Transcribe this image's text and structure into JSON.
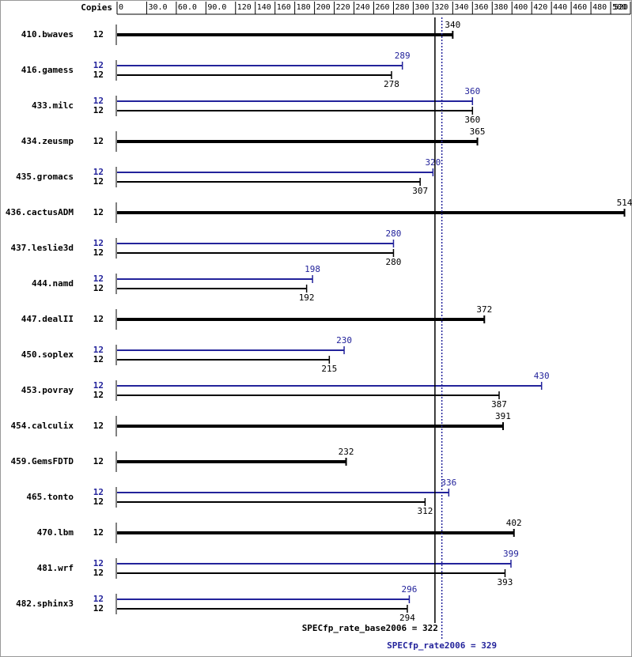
{
  "chart_data": {
    "type": "bar",
    "copies_label": "Copies",
    "categories": [
      "410.bwaves",
      "416.gamess",
      "433.milc",
      "434.zeusmp",
      "435.gromacs",
      "436.cactusADM",
      "437.leslie3d",
      "444.namd",
      "447.dealII",
      "450.soplex",
      "453.povray",
      "454.calculix",
      "459.GemsFDTD",
      "465.tonto",
      "470.lbm",
      "481.wrf",
      "482.sphinx3"
    ],
    "series": [
      {
        "color": "#23239b",
        "copies": [
          null,
          12,
          12,
          null,
          12,
          null,
          12,
          12,
          null,
          12,
          12,
          null,
          null,
          12,
          null,
          12,
          12
        ],
        "values": [
          null,
          289,
          360,
          null,
          320,
          null,
          280,
          198,
          null,
          230,
          430,
          null,
          null,
          336,
          null,
          399,
          296
        ]
      },
      {
        "color": "#000000",
        "copies": [
          12,
          12,
          12,
          12,
          12,
          12,
          12,
          12,
          12,
          12,
          12,
          12,
          12,
          12,
          12,
          12,
          12
        ],
        "values": [
          340,
          278,
          360,
          365,
          307,
          514,
          280,
          192,
          372,
          215,
          387,
          391,
          232,
          312,
          402,
          393,
          294
        ]
      }
    ],
    "xlim": [
      0,
      520
    ],
    "xticks": [
      0,
      {
        "value": 30,
        "label": "30.0"
      },
      {
        "value": 60,
        "label": "60.0"
      },
      {
        "value": 90,
        "label": "90.0"
      },
      120,
      140,
      160,
      180,
      200,
      220,
      240,
      260,
      280,
      300,
      320,
      340,
      360,
      380,
      400,
      420,
      440,
      460,
      480,
      500,
      520
    ],
    "reference_lines": [
      {
        "label": "SPECfp_rate_base2006 = 322",
        "value": 322,
        "color": "#000000",
        "dashed": false
      },
      {
        "label": "SPECfp_rate2006 = 329",
        "value": 329,
        "color": "#23239b",
        "dashed": true
      }
    ]
  }
}
